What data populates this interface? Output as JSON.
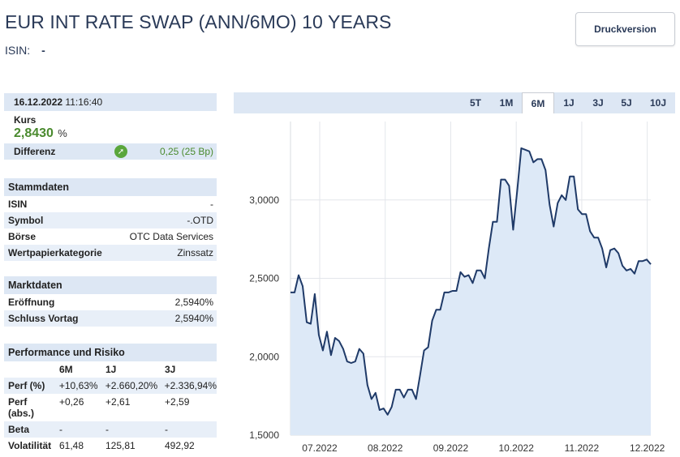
{
  "header": {
    "title": "EUR INT RATE SWAP (ANN/6MO) 10 YEARS",
    "isin_label": "ISIN:",
    "isin_value": "-",
    "print_button": "Druckversion"
  },
  "quote": {
    "date": "16.12.2022",
    "time": "11:16:40",
    "kurs_label": "Kurs",
    "kurs_value": "2,8430",
    "kurs_unit": "%",
    "diff_label": "Differenz",
    "diff_value": "0,25 (25 Bp)",
    "diff_direction": "up",
    "accent_green": "#4a8a2e"
  },
  "stammdaten": {
    "heading": "Stammdaten",
    "rows": [
      {
        "k": "ISIN",
        "v": "-"
      },
      {
        "k": "Symbol",
        "v": "-.OTD"
      },
      {
        "k": "Börse",
        "v": "OTC Data Services"
      },
      {
        "k": "Wertpapierkategorie",
        "v": "Zinssatz"
      }
    ]
  },
  "marktdaten": {
    "heading": "Marktdaten",
    "rows": [
      {
        "k": "Eröffnung",
        "v": "2,5940%"
      },
      {
        "k": "Schluss Vortag",
        "v": "2,5940%"
      }
    ]
  },
  "performance": {
    "heading": "Performance und Risiko",
    "columns": [
      "6M",
      "1J",
      "3J"
    ],
    "rows": [
      {
        "label": "Perf (%)",
        "values": [
          "+10,63%",
          "+2.660,20%",
          "+2.336,94%"
        ]
      },
      {
        "label": "Perf (abs.)",
        "values": [
          "+0,26",
          "+2,61",
          "+2,59"
        ]
      },
      {
        "label": "Beta",
        "values": [
          "-",
          "-",
          "-"
        ]
      },
      {
        "label": "Volatilität",
        "values": [
          "61,48",
          "125,81",
          "492,92"
        ]
      }
    ]
  },
  "tabs": {
    "items": [
      "5T",
      "1M",
      "6M",
      "1J",
      "3J",
      "5J",
      "10J"
    ],
    "active": "6M"
  },
  "chart_data": {
    "type": "area",
    "title": "",
    "xlabel": "",
    "ylabel": "",
    "ylim": [
      1.5,
      3.5
    ],
    "y_ticks": [
      "1,5000",
      "2,0000",
      "2,5000",
      "3,0000"
    ],
    "x_ticks": [
      "07.2022",
      "08.2022",
      "09.2022",
      "10.2022",
      "11.2022",
      "12.2022"
    ],
    "grid": true,
    "line_color": "#1f3a68",
    "fill_color": "#dde9f7",
    "series": [
      {
        "values": [
          2.41,
          2.41,
          2.52,
          2.45,
          2.22,
          2.21,
          2.4,
          2.14,
          2.04,
          2.16,
          2.01,
          2.12,
          2.1,
          2.05,
          1.97,
          1.96,
          1.97,
          2.05,
          2.02,
          1.82,
          1.73,
          1.77,
          1.66,
          1.67,
          1.63,
          1.68,
          1.79,
          1.79,
          1.74,
          1.79,
          1.79,
          1.73,
          1.88,
          2.04,
          2.06,
          2.23,
          2.3,
          2.3,
          2.41,
          2.41,
          2.42,
          2.42,
          2.54,
          2.51,
          2.52,
          2.47,
          2.55,
          2.55,
          2.5,
          2.69,
          2.86,
          2.86,
          3.13,
          3.13,
          3.09,
          2.81,
          3.06,
          3.33,
          3.32,
          3.31,
          3.24,
          3.26,
          3.26,
          3.19,
          2.97,
          2.83,
          2.98,
          3.03,
          3.0,
          3.15,
          3.15,
          2.94,
          2.91,
          2.91,
          2.8,
          2.76,
          2.76,
          2.69,
          2.57,
          2.68,
          2.69,
          2.66,
          2.58,
          2.55,
          2.56,
          2.53,
          2.61,
          2.61,
          2.62,
          2.59
        ]
      }
    ]
  }
}
